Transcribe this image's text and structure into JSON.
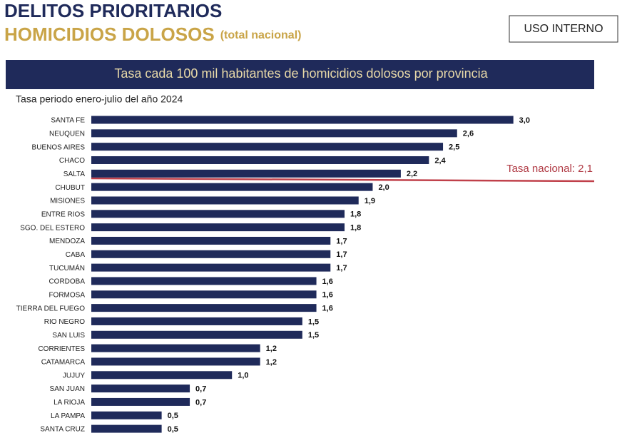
{
  "header": {
    "title": "DELITOS PRIORITARIOS",
    "subtitle": "HOMICIDIOS DOLOSOS",
    "subtitle_note": "(total nacional)",
    "badge": "USO INTERNO"
  },
  "chart_data": {
    "type": "hbar",
    "title": "Tasa cada 100 mil habitantes de homicidios dolosos por provincia",
    "subtitle": "Tasa periodo enero-julio del año 2024",
    "categories": [
      "SANTA FE",
      "NEUQUEN",
      "BUENOS AIRES",
      "CHACO",
      "SALTA",
      "CHUBUT",
      "MISIONES",
      "ENTRE RIOS",
      "SGO. DEL ESTERO",
      "MENDOZA",
      "CABA",
      "TUCUMÁN",
      "CORDOBA",
      "FORMOSA",
      "TIERRA DEL FUEGO",
      "RIO NEGRO",
      "SAN LUIS",
      "CORRIENTES",
      "CATAMARCA",
      "JUJUY",
      "SAN JUAN",
      "LA RIOJA",
      "LA PAMPA",
      "SANTA CRUZ"
    ],
    "values": [
      3.0,
      2.6,
      2.5,
      2.4,
      2.2,
      2.0,
      1.9,
      1.8,
      1.8,
      1.7,
      1.7,
      1.7,
      1.6,
      1.6,
      1.6,
      1.5,
      1.5,
      1.2,
      1.2,
      1.0,
      0.7,
      0.7,
      0.5,
      0.5
    ],
    "value_labels": [
      "3,0",
      "2,6",
      "2,5",
      "2,4",
      "2,2",
      "2,0",
      "1,9",
      "1,8",
      "1,8",
      "1,7",
      "1,7",
      "1,7",
      "1,6",
      "1,6",
      "1,6",
      "1,5",
      "1,5",
      "1,2",
      "1,2",
      "1,0",
      "0,7",
      "0,7",
      "0,5",
      "0,5"
    ],
    "color": "#1f2a5a",
    "xlim": [
      0,
      3.6
    ],
    "annotation": "Tasa nacional: 2,1"
  }
}
